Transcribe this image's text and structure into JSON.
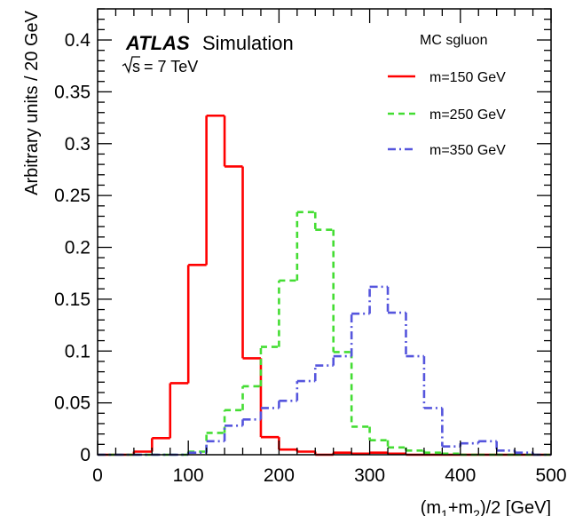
{
  "chart_data": {
    "type": "line",
    "subtype": "step-histogram",
    "xlabel": "(m1+m2)/2 [GeV]",
    "ylabel": "Arbitrary units / 20 GeV",
    "xlim": [
      0,
      500
    ],
    "ylim": [
      0,
      0.43
    ],
    "x_ticks": [
      0,
      100,
      200,
      300,
      400,
      500
    ],
    "y_ticks": [
      0,
      0.05,
      0.1,
      0.15,
      0.2,
      0.25,
      0.3,
      0.35,
      0.4
    ],
    "bin_width": 20,
    "grid": false,
    "legend_position": "top-right",
    "annotations": {
      "experiment": "ATLAS",
      "label": "Simulation",
      "energy_prefix": "s",
      "energy_suffix": " = 7 TeV"
    },
    "legend_title": "MC sgluon",
    "series": [
      {
        "name": "m=150 GeV",
        "color": "#ff0000",
        "style": "solid",
        "x": [
          0,
          20,
          40,
          60,
          80,
          100,
          120,
          140,
          160,
          180,
          200,
          220,
          240,
          260,
          280,
          300,
          320,
          340,
          360,
          380,
          400,
          420,
          440,
          460,
          480
        ],
        "values": [
          0.0,
          0.0,
          0.003,
          0.016,
          0.069,
          0.183,
          0.327,
          0.278,
          0.093,
          0.017,
          0.005,
          0.003,
          0.0,
          0.002,
          0.001,
          0.002,
          0.001,
          0.0,
          0.0,
          0.0,
          0.0,
          0.0,
          0.0,
          0.0,
          0.0
        ]
      },
      {
        "name": "m=250 GeV",
        "color": "#44dd33",
        "style": "dashed",
        "x": [
          0,
          20,
          40,
          60,
          80,
          100,
          120,
          140,
          160,
          180,
          200,
          220,
          240,
          260,
          280,
          300,
          320,
          340,
          360,
          380,
          400,
          420,
          440,
          460,
          480
        ],
        "values": [
          0.0,
          0.0,
          0.0,
          0.0,
          0.0,
          0.003,
          0.021,
          0.043,
          0.066,
          0.104,
          0.168,
          0.234,
          0.217,
          0.099,
          0.027,
          0.014,
          0.007,
          0.004,
          0.002,
          0.001,
          0.0,
          0.0,
          0.0,
          0.0,
          0.0
        ]
      },
      {
        "name": "m=350 GeV",
        "color": "#5555dd",
        "style": "dashdot",
        "x": [
          0,
          20,
          40,
          60,
          80,
          100,
          120,
          140,
          160,
          180,
          200,
          220,
          240,
          260,
          280,
          300,
          320,
          340,
          360,
          380,
          400,
          420,
          440,
          460,
          480
        ],
        "values": [
          0.0,
          0.0,
          0.0,
          0.0,
          0.0,
          0.002,
          0.013,
          0.028,
          0.034,
          0.045,
          0.052,
          0.071,
          0.086,
          0.095,
          0.136,
          0.162,
          0.137,
          0.095,
          0.045,
          0.008,
          0.011,
          0.013,
          0.004,
          0.002,
          0.0
        ]
      }
    ]
  }
}
